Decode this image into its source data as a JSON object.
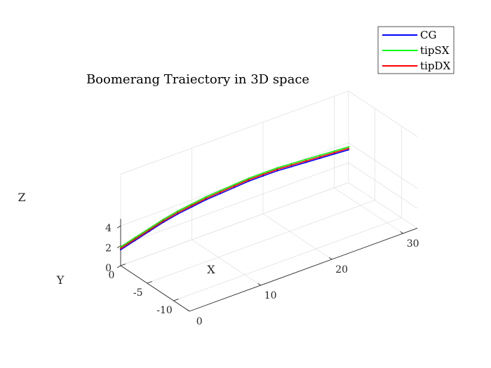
{
  "chart_data": {
    "type": "line",
    "title": "Boomerang Traiectory in 3D space",
    "xlabel": "X",
    "ylabel": "Y",
    "zlabel": "Z",
    "xlim": [
      0,
      32
    ],
    "ylim": [
      -13,
      0
    ],
    "zlim": [
      0,
      4
    ],
    "xticks": [
      "0",
      "10",
      "20",
      "30"
    ],
    "yticks": [
      "0",
      "-5",
      "-10"
    ],
    "zticks": [
      "0",
      "2",
      "4"
    ],
    "grid": true,
    "legend_position": "top-right",
    "series": [
      {
        "name": "CG",
        "color": "#0000ff",
        "x": [
          0,
          2,
          4,
          6,
          8,
          10,
          12,
          14,
          16,
          18,
          20,
          22,
          24,
          26,
          28,
          30,
          32
        ],
        "y": [
          0,
          0,
          0,
          0,
          0,
          0,
          0,
          0,
          0,
          0,
          0,
          0,
          0,
          0,
          0,
          0,
          0
        ],
        "z": [
          1.6,
          2.0,
          2.4,
          2.8,
          3.1,
          3.3,
          3.5,
          3.6,
          3.7,
          3.8,
          3.8,
          3.8,
          3.7,
          3.6,
          3.5,
          3.4,
          3.3
        ]
      },
      {
        "name": "tipSX",
        "color": "#00ff00",
        "x": [
          0,
          2,
          4,
          6,
          8,
          10,
          12,
          14,
          16,
          18,
          20,
          22,
          24,
          26,
          28,
          30,
          32
        ],
        "y": [
          0,
          0,
          0,
          0,
          0,
          0,
          0,
          0,
          0,
          0,
          0,
          0,
          0,
          0,
          0,
          0,
          0
        ],
        "z": [
          1.9,
          2.3,
          2.7,
          3.1,
          3.4,
          3.6,
          3.8,
          3.9,
          4.0,
          4.1,
          4.1,
          4.1,
          4.0,
          3.9,
          3.8,
          3.7,
          3.6
        ]
      },
      {
        "name": "tipDX",
        "color": "#ff0000",
        "x": [
          0,
          2,
          4,
          6,
          8,
          10,
          12,
          14,
          16,
          18,
          20,
          22,
          24,
          26,
          28,
          30,
          32
        ],
        "y": [
          0,
          0,
          0,
          0,
          0,
          0,
          0,
          0,
          0,
          0,
          0,
          0,
          0,
          0,
          0,
          0,
          0
        ],
        "z": [
          1.75,
          2.15,
          2.55,
          2.95,
          3.25,
          3.45,
          3.65,
          3.75,
          3.85,
          3.95,
          3.95,
          3.95,
          3.85,
          3.75,
          3.65,
          3.55,
          3.45
        ]
      }
    ]
  }
}
